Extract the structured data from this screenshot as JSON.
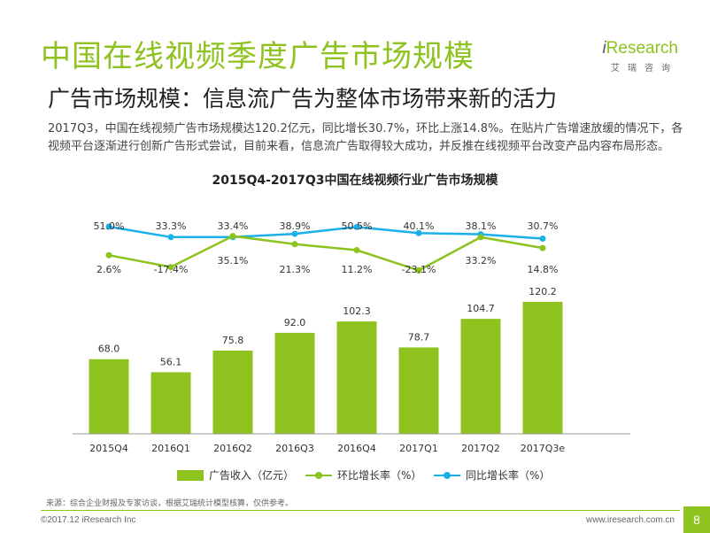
{
  "header": {
    "title": "中国在线视频季度广告市场规模",
    "subtitle": "广告市场规模：信息流广告为整体市场带来新的活力",
    "summary": "2017Q3，中国在线视频广告市场规模达120.2亿元，同比增长30.7%，环比上涨14.8%。在贴片广告增速放缓的情况下，各视频平台逐渐进行创新广告形式尝试，目前来看，信息流广告取得较大成功，并反推在线视频平台改变产品内容布局形态。"
  },
  "logo": {
    "brand_i": "i",
    "brand_rest": "Research",
    "cn": "艾瑞咨询"
  },
  "chart_data": {
    "type": "bar",
    "title": "2015Q4-2017Q3中国在线视频行业广告市场规模",
    "categories": [
      "2015Q4",
      "2016Q1",
      "2016Q2",
      "2016Q3",
      "2016Q4",
      "2017Q1",
      "2017Q2",
      "2017Q3e"
    ],
    "series": [
      {
        "name": "广告收入（亿元）",
        "kind": "bar",
        "color": "#8dc21f",
        "values": [
          68.0,
          56.1,
          75.8,
          92.0,
          102.3,
          78.7,
          104.7,
          120.2
        ],
        "labels": [
          "68.0",
          "56.1",
          "75.8",
          "92.0",
          "102.3",
          "78.7",
          "104.7",
          "120.2"
        ]
      },
      {
        "name": "环比增长率（%）",
        "kind": "line",
        "color": "#8dc21f",
        "values": [
          2.6,
          -17.4,
          35.1,
          21.3,
          11.2,
          -23.1,
          33.2,
          14.8
        ],
        "labels": [
          "2.6%",
          "-17.4%",
          "35.1%",
          "21.3%",
          "11.2%",
          "-23.1%",
          "33.2%",
          "14.8%"
        ]
      },
      {
        "name": "同比增长率（%）",
        "kind": "line",
        "color": "#1ab0e8",
        "values": [
          51.0,
          33.3,
          33.4,
          38.9,
          50.5,
          40.1,
          38.1,
          30.7
        ],
        "labels": [
          "51.0%",
          "33.3%",
          "33.4%",
          "38.9%",
          "50.5%",
          "40.1%",
          "38.1%",
          "30.7%"
        ]
      }
    ],
    "grid": false,
    "legend_position": "bottom"
  },
  "source": "来源：综合企业财报及专家访谈，根据艾瑞统计模型核算，仅供参考。",
  "footer": {
    "copyright": "©2017.12 iResearch Inc",
    "website": "www.iresearch.com.cn",
    "page": "8"
  }
}
